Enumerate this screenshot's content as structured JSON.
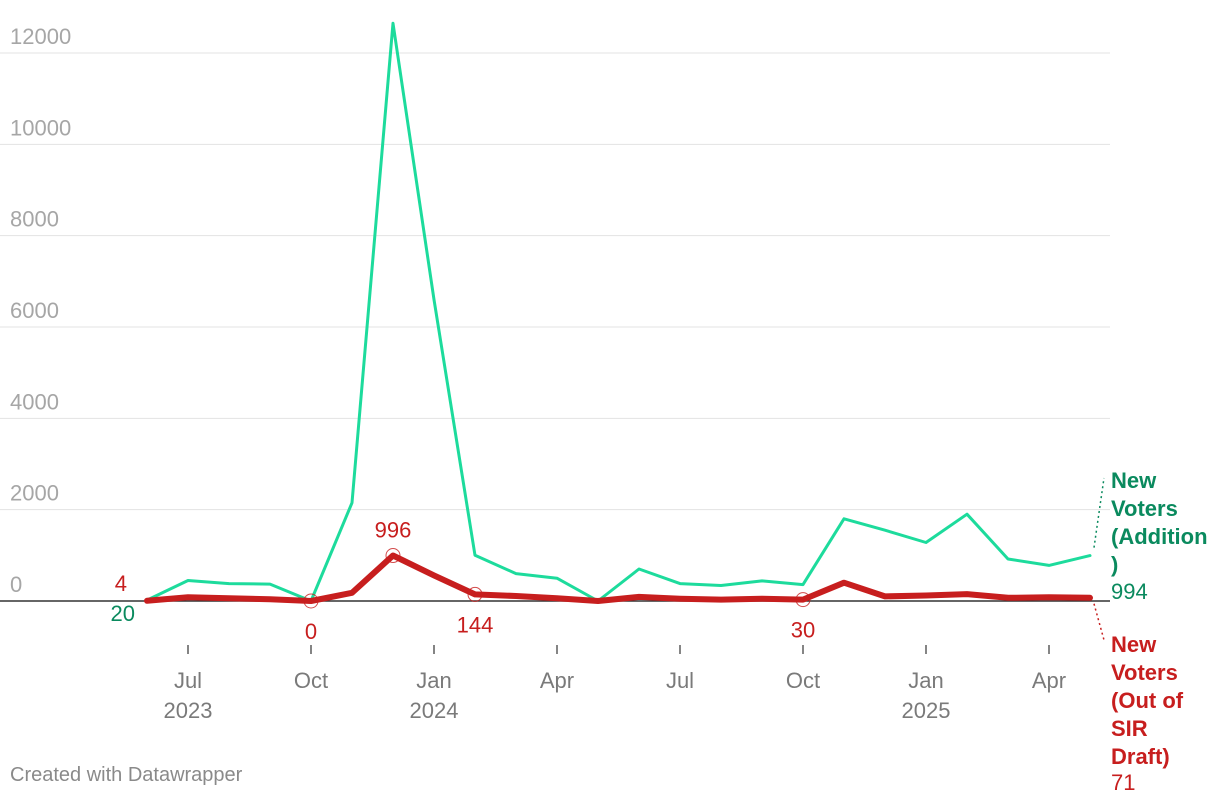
{
  "chart_data": {
    "type": "line",
    "ylim": [
      0,
      12000
    ],
    "yticks": [
      0,
      2000,
      4000,
      6000,
      8000,
      10000,
      12000
    ],
    "grid": true,
    "x": [
      "2023-06",
      "2023-07",
      "2023-08",
      "2023-09",
      "2023-10",
      "2023-11",
      "2023-12",
      "2024-01",
      "2024-02",
      "2024-03",
      "2024-04",
      "2024-05",
      "2024-06",
      "2024-07",
      "2024-08",
      "2024-09",
      "2024-10",
      "2024-11",
      "2024-12",
      "2025-01",
      "2025-02",
      "2025-03",
      "2025-04",
      "2025-05"
    ],
    "x_ticks": [
      {
        "date": "2023-07",
        "month": "Jul",
        "year": "2023"
      },
      {
        "date": "2023-10",
        "month": "Oct",
        "year": ""
      },
      {
        "date": "2024-01",
        "month": "Jan",
        "year": "2024"
      },
      {
        "date": "2024-04",
        "month": "Apr",
        "year": ""
      },
      {
        "date": "2024-07",
        "month": "Jul",
        "year": ""
      },
      {
        "date": "2024-10",
        "month": "Oct",
        "year": ""
      },
      {
        "date": "2025-01",
        "month": "Jan",
        "year": "2025"
      },
      {
        "date": "2025-04",
        "month": "Apr",
        "year": ""
      }
    ],
    "series": [
      {
        "name": "New Voters (Addition)",
        "color": "#1ddb9c",
        "label_color": "#0a8a5e",
        "last_value_label": "994",
        "values": [
          20,
          450,
          380,
          370,
          0,
          2150,
          12650,
          6600,
          1000,
          600,
          500,
          0,
          700,
          380,
          340,
          440,
          360,
          1800,
          1550,
          1280,
          1900,
          920,
          780,
          994
        ]
      },
      {
        "name": "New Voters (Out of SIR Draft)",
        "color": "#c71e1e",
        "label_color": "#c71e1e",
        "last_value_label": "71",
        "values": [
          4,
          80,
          60,
          40,
          0,
          180,
          996,
          560,
          144,
          110,
          60,
          0,
          90,
          50,
          30,
          50,
          30,
          400,
          100,
          120,
          150,
          70,
          80,
          71
        ]
      }
    ],
    "annotations": [
      {
        "series": 1,
        "index": 0,
        "text": "4",
        "pos": "above",
        "marker": false
      },
      {
        "series": 0,
        "index": 0,
        "text": "20",
        "pos": "below",
        "marker": false
      },
      {
        "series": 1,
        "index": 4,
        "text": "0",
        "pos": "below",
        "marker": true
      },
      {
        "series": 1,
        "index": 6,
        "text": "996",
        "pos": "above",
        "marker": true
      },
      {
        "series": 1,
        "index": 8,
        "text": "144",
        "pos": "below",
        "marker": true
      },
      {
        "series": 1,
        "index": 16,
        "text": "30",
        "pos": "below",
        "marker": true
      }
    ],
    "legend": {
      "placement": "right",
      "addition_lines": [
        "New",
        "Voters",
        "(Addition",
        ")"
      ],
      "draft_lines": [
        "New",
        "Voters",
        "(Out of",
        "SIR",
        "Draft)"
      ]
    }
  },
  "footer": {
    "credit": "Created with Datawrapper"
  }
}
